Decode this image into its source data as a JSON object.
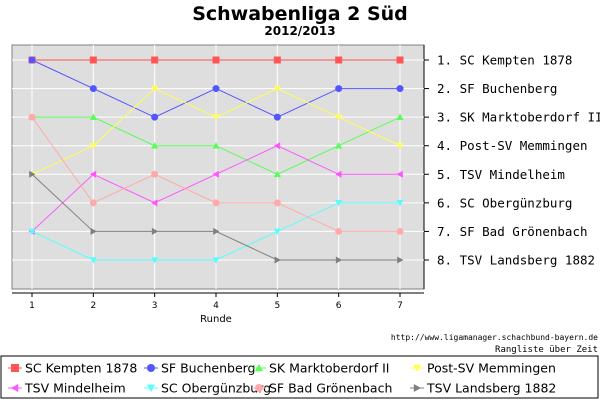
{
  "chart_data": {
    "type": "line",
    "title": "Schwabenliga 2 Süd",
    "subtitle": "2012/2013",
    "xlabel": "Runde",
    "x": [
      1,
      2,
      3,
      4,
      5,
      6,
      7
    ],
    "ylim": [
      1,
      8
    ],
    "y_inverted": true,
    "grid": true,
    "ranking_labels": [
      "1. SC Kempten 1878",
      "2. SF Buchenberg",
      "3. SK Marktoberdorf II",
      "4. Post-SV Memmingen",
      "5. TSV Mindelheim",
      "6. SC Obergünzburg",
      "7. SF Bad Grönenbach",
      "8. TSV Landsberg 1882"
    ],
    "series": [
      {
        "name": "SC Kempten 1878",
        "color": "#ff5555",
        "marker": "square",
        "values": [
          1,
          1,
          1,
          1,
          1,
          1,
          1
        ]
      },
      {
        "name": "SF Buchenberg",
        "color": "#5555ff",
        "marker": "circle",
        "values": [
          1,
          2,
          3,
          2,
          3,
          2,
          2
        ]
      },
      {
        "name": "SK Marktoberdorf II",
        "color": "#55ff55",
        "marker": "triangle-up",
        "values": [
          3,
          3,
          4,
          4,
          5,
          4,
          3
        ]
      },
      {
        "name": "Post-SV Memmingen",
        "color": "#ffff55",
        "marker": "triangle-down",
        "values": [
          5,
          4,
          2,
          3,
          2,
          3,
          4
        ]
      },
      {
        "name": "TSV Mindelheim",
        "color": "#ff55ff",
        "marker": "triangle-left",
        "values": [
          7,
          5,
          6,
          5,
          4,
          5,
          5
        ]
      },
      {
        "name": "SC Obergünzburg",
        "color": "#55ffff",
        "marker": "triangle-down",
        "values": [
          7,
          8,
          8,
          8,
          7,
          6,
          6
        ]
      },
      {
        "name": "SF Bad Grönenbach",
        "color": "#ffaaaa",
        "marker": "circle",
        "values": [
          3,
          6,
          5,
          6,
          6,
          7,
          7
        ]
      },
      {
        "name": "TSV Landsberg 1882",
        "color": "#808080",
        "marker": "triangle-right",
        "values": [
          5,
          7,
          7,
          7,
          8,
          8,
          8
        ]
      }
    ],
    "credit_url": "http://www.ligamanager.schachbund-bayern.de",
    "credit_caption": "Rangliste über Zeit",
    "legend_position": "bottom"
  }
}
